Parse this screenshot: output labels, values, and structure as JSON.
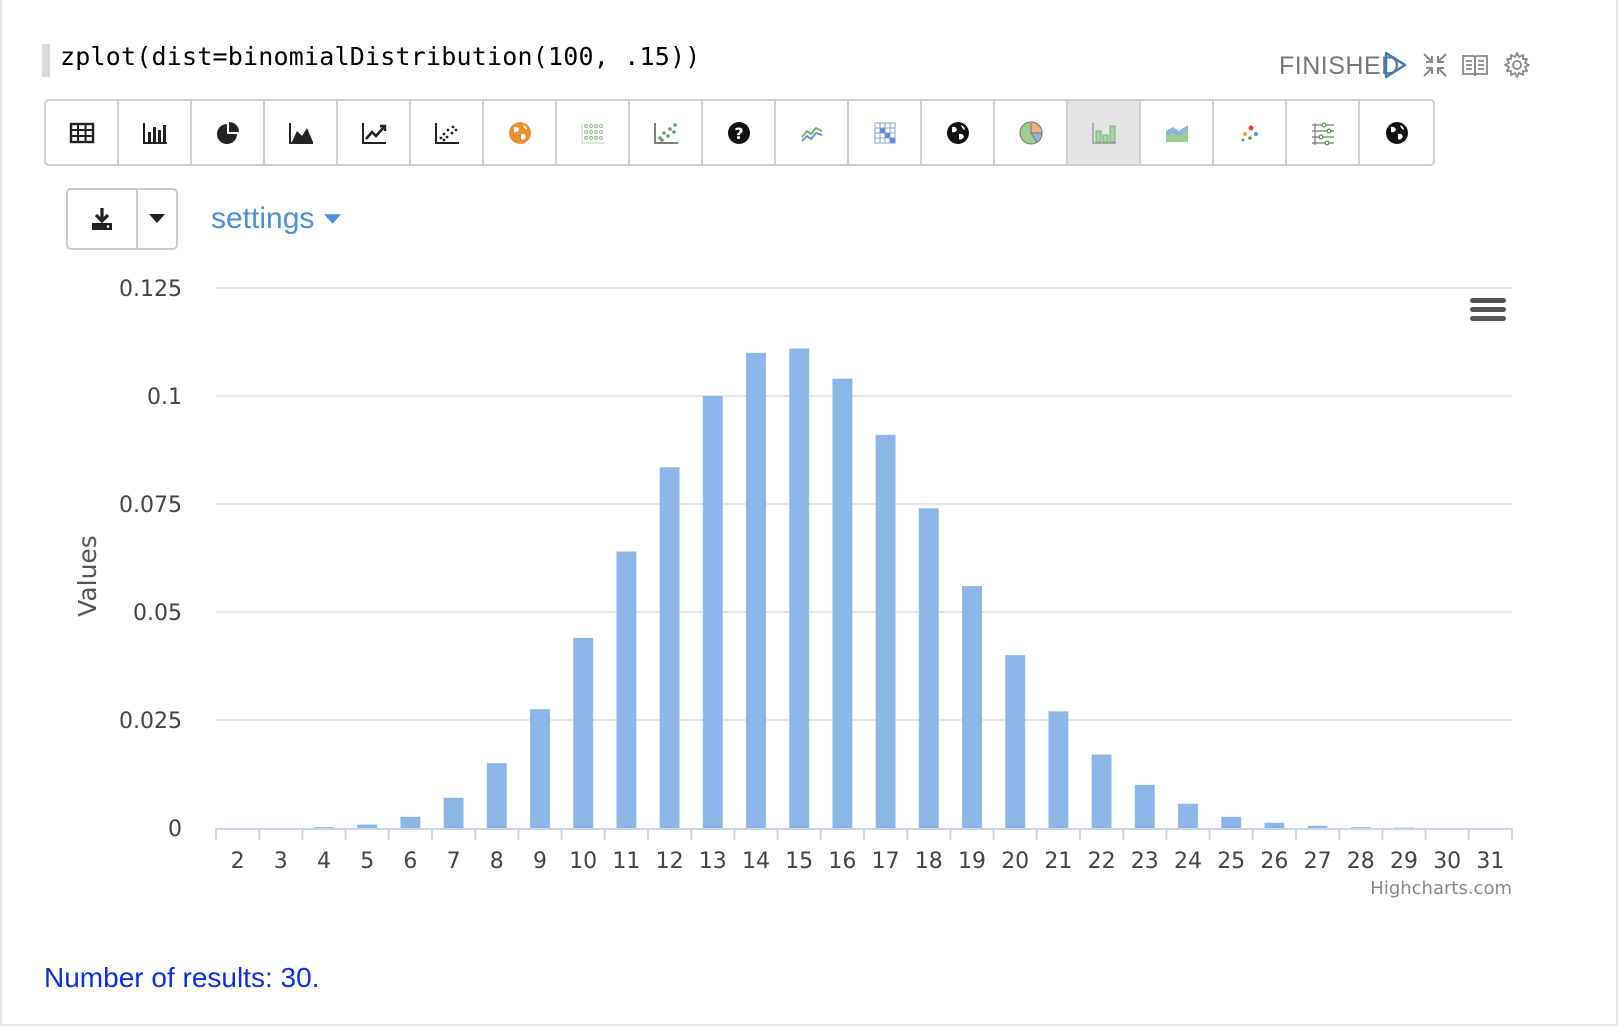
{
  "paragraph": {
    "code": "zplot(dist=binomialDistribution(100, .15))",
    "status": "FINISHED"
  },
  "controls": [
    {
      "name": "run-icon",
      "color": "#3d7ab8"
    },
    {
      "name": "collapse-icon",
      "color": "#888888"
    },
    {
      "name": "book-icon",
      "color": "#888888"
    },
    {
      "name": "gear-icon",
      "color": "#888888"
    }
  ],
  "toolbar": {
    "buttons": [
      {
        "name": "table-icon",
        "active": false
      },
      {
        "name": "bar-chart-icon",
        "active": false
      },
      {
        "name": "pie-chart-icon",
        "active": false
      },
      {
        "name": "area-chart-icon",
        "active": false
      },
      {
        "name": "line-chart-icon",
        "active": false
      },
      {
        "name": "scatter-chart-icon",
        "active": false
      },
      {
        "name": "globe-orange-icon",
        "active": false
      },
      {
        "name": "dot-grid-icon",
        "active": false
      },
      {
        "name": "scatter-green-icon",
        "active": false
      },
      {
        "name": "help-icon",
        "active": false
      },
      {
        "name": "line-multi-icon",
        "active": false
      },
      {
        "name": "heatmap-icon",
        "active": false
      },
      {
        "name": "globe-dark-icon",
        "active": false
      },
      {
        "name": "pie-color-icon",
        "active": false
      },
      {
        "name": "bar-green-icon",
        "active": true
      },
      {
        "name": "area-color-icon",
        "active": false
      },
      {
        "name": "bubble-icon",
        "active": false
      },
      {
        "name": "parallel-icon",
        "active": false
      },
      {
        "name": "globe-black-icon",
        "active": false
      }
    ]
  },
  "settings_label": "settings",
  "results_text": "Number of results: 30.",
  "credits": "Highcharts.com",
  "colors": {
    "bar": "#8cb6e8",
    "grid": "#e6e6e6",
    "link": "#4a90d9"
  },
  "chart_data": {
    "type": "bar",
    "title": "",
    "xlabel": "",
    "ylabel": "Values",
    "ylim": [
      0,
      0.125
    ],
    "yticks": [
      "0",
      "0.025",
      "0.05",
      "0.075",
      "0.1",
      "0.125"
    ],
    "categories": [
      "2",
      "3",
      "4",
      "5",
      "6",
      "7",
      "8",
      "9",
      "10",
      "11",
      "12",
      "13",
      "14",
      "15",
      "16",
      "17",
      "18",
      "19",
      "20",
      "21",
      "22",
      "23",
      "24",
      "25",
      "26",
      "27",
      "28",
      "29",
      "30",
      "31"
    ],
    "values": [
      0.0,
      0.0,
      0.0002,
      0.0008,
      0.0026,
      0.007,
      0.015,
      0.0275,
      0.044,
      0.064,
      0.0835,
      0.1,
      0.11,
      0.111,
      0.104,
      0.091,
      0.074,
      0.056,
      0.04,
      0.027,
      0.017,
      0.01,
      0.0056,
      0.0026,
      0.0012,
      0.0005,
      0.0002,
      0.0001,
      0.0,
      0.0
    ]
  }
}
